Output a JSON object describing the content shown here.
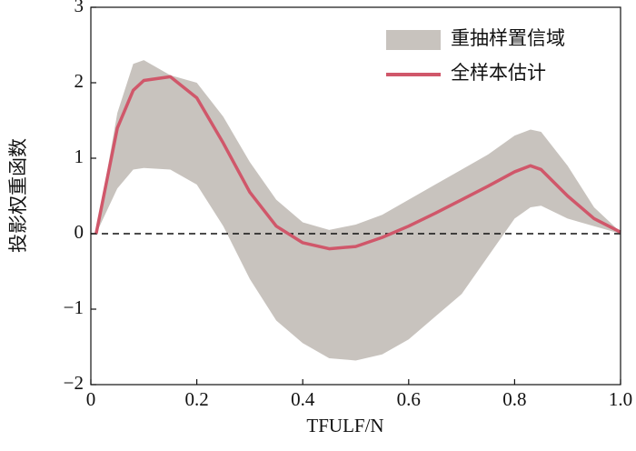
{
  "chart_data": {
    "type": "line",
    "x_label": "TFULF/N",
    "y_label": "投影权重函数",
    "x": [
      0.01,
      0.05,
      0.08,
      0.1,
      0.15,
      0.2,
      0.25,
      0.3,
      0.35,
      0.4,
      0.45,
      0.5,
      0.55,
      0.6,
      0.65,
      0.7,
      0.75,
      0.8,
      0.83,
      0.85,
      0.9,
      0.95,
      1.0
    ],
    "series": [
      {
        "name": "重抽样置信域",
        "kind": "band",
        "color": "#c8c3be",
        "upper": [
          0,
          1.6,
          2.25,
          2.3,
          2.1,
          2.0,
          1.55,
          0.95,
          0.45,
          0.15,
          0.05,
          0.12,
          0.25,
          0.45,
          0.65,
          0.85,
          1.05,
          1.3,
          1.38,
          1.35,
          0.9,
          0.35,
          0.02
        ],
        "lower": [
          0,
          0.6,
          0.85,
          0.87,
          0.85,
          0.65,
          0.1,
          -0.6,
          -1.15,
          -1.45,
          -1.65,
          -1.68,
          -1.6,
          -1.4,
          -1.1,
          -0.8,
          -0.3,
          0.2,
          0.35,
          0.37,
          0.2,
          0.1,
          0
        ]
      },
      {
        "name": "全样本估计",
        "kind": "line",
        "color": "#d0576a",
        "values": [
          0,
          1.4,
          1.9,
          2.03,
          2.08,
          1.8,
          1.2,
          0.55,
          0.1,
          -0.12,
          -0.2,
          -0.17,
          -0.05,
          0.1,
          0.27,
          0.45,
          0.63,
          0.82,
          0.9,
          0.85,
          0.5,
          0.2,
          0.02
        ]
      }
    ],
    "reference_line": 0,
    "xlim": [
      0,
      1
    ],
    "xticks": [
      0,
      0.2,
      0.4,
      0.6,
      0.8,
      {
        "value": 1,
        "label": "1.0"
      }
    ],
    "ylim": [
      -2,
      3
    ],
    "yticks": [
      {
        "value": -2,
        "label": "−2"
      },
      {
        "value": -1,
        "label": "−1"
      },
      0,
      1,
      2,
      3
    ],
    "legend": "upper right",
    "grid": false
  }
}
